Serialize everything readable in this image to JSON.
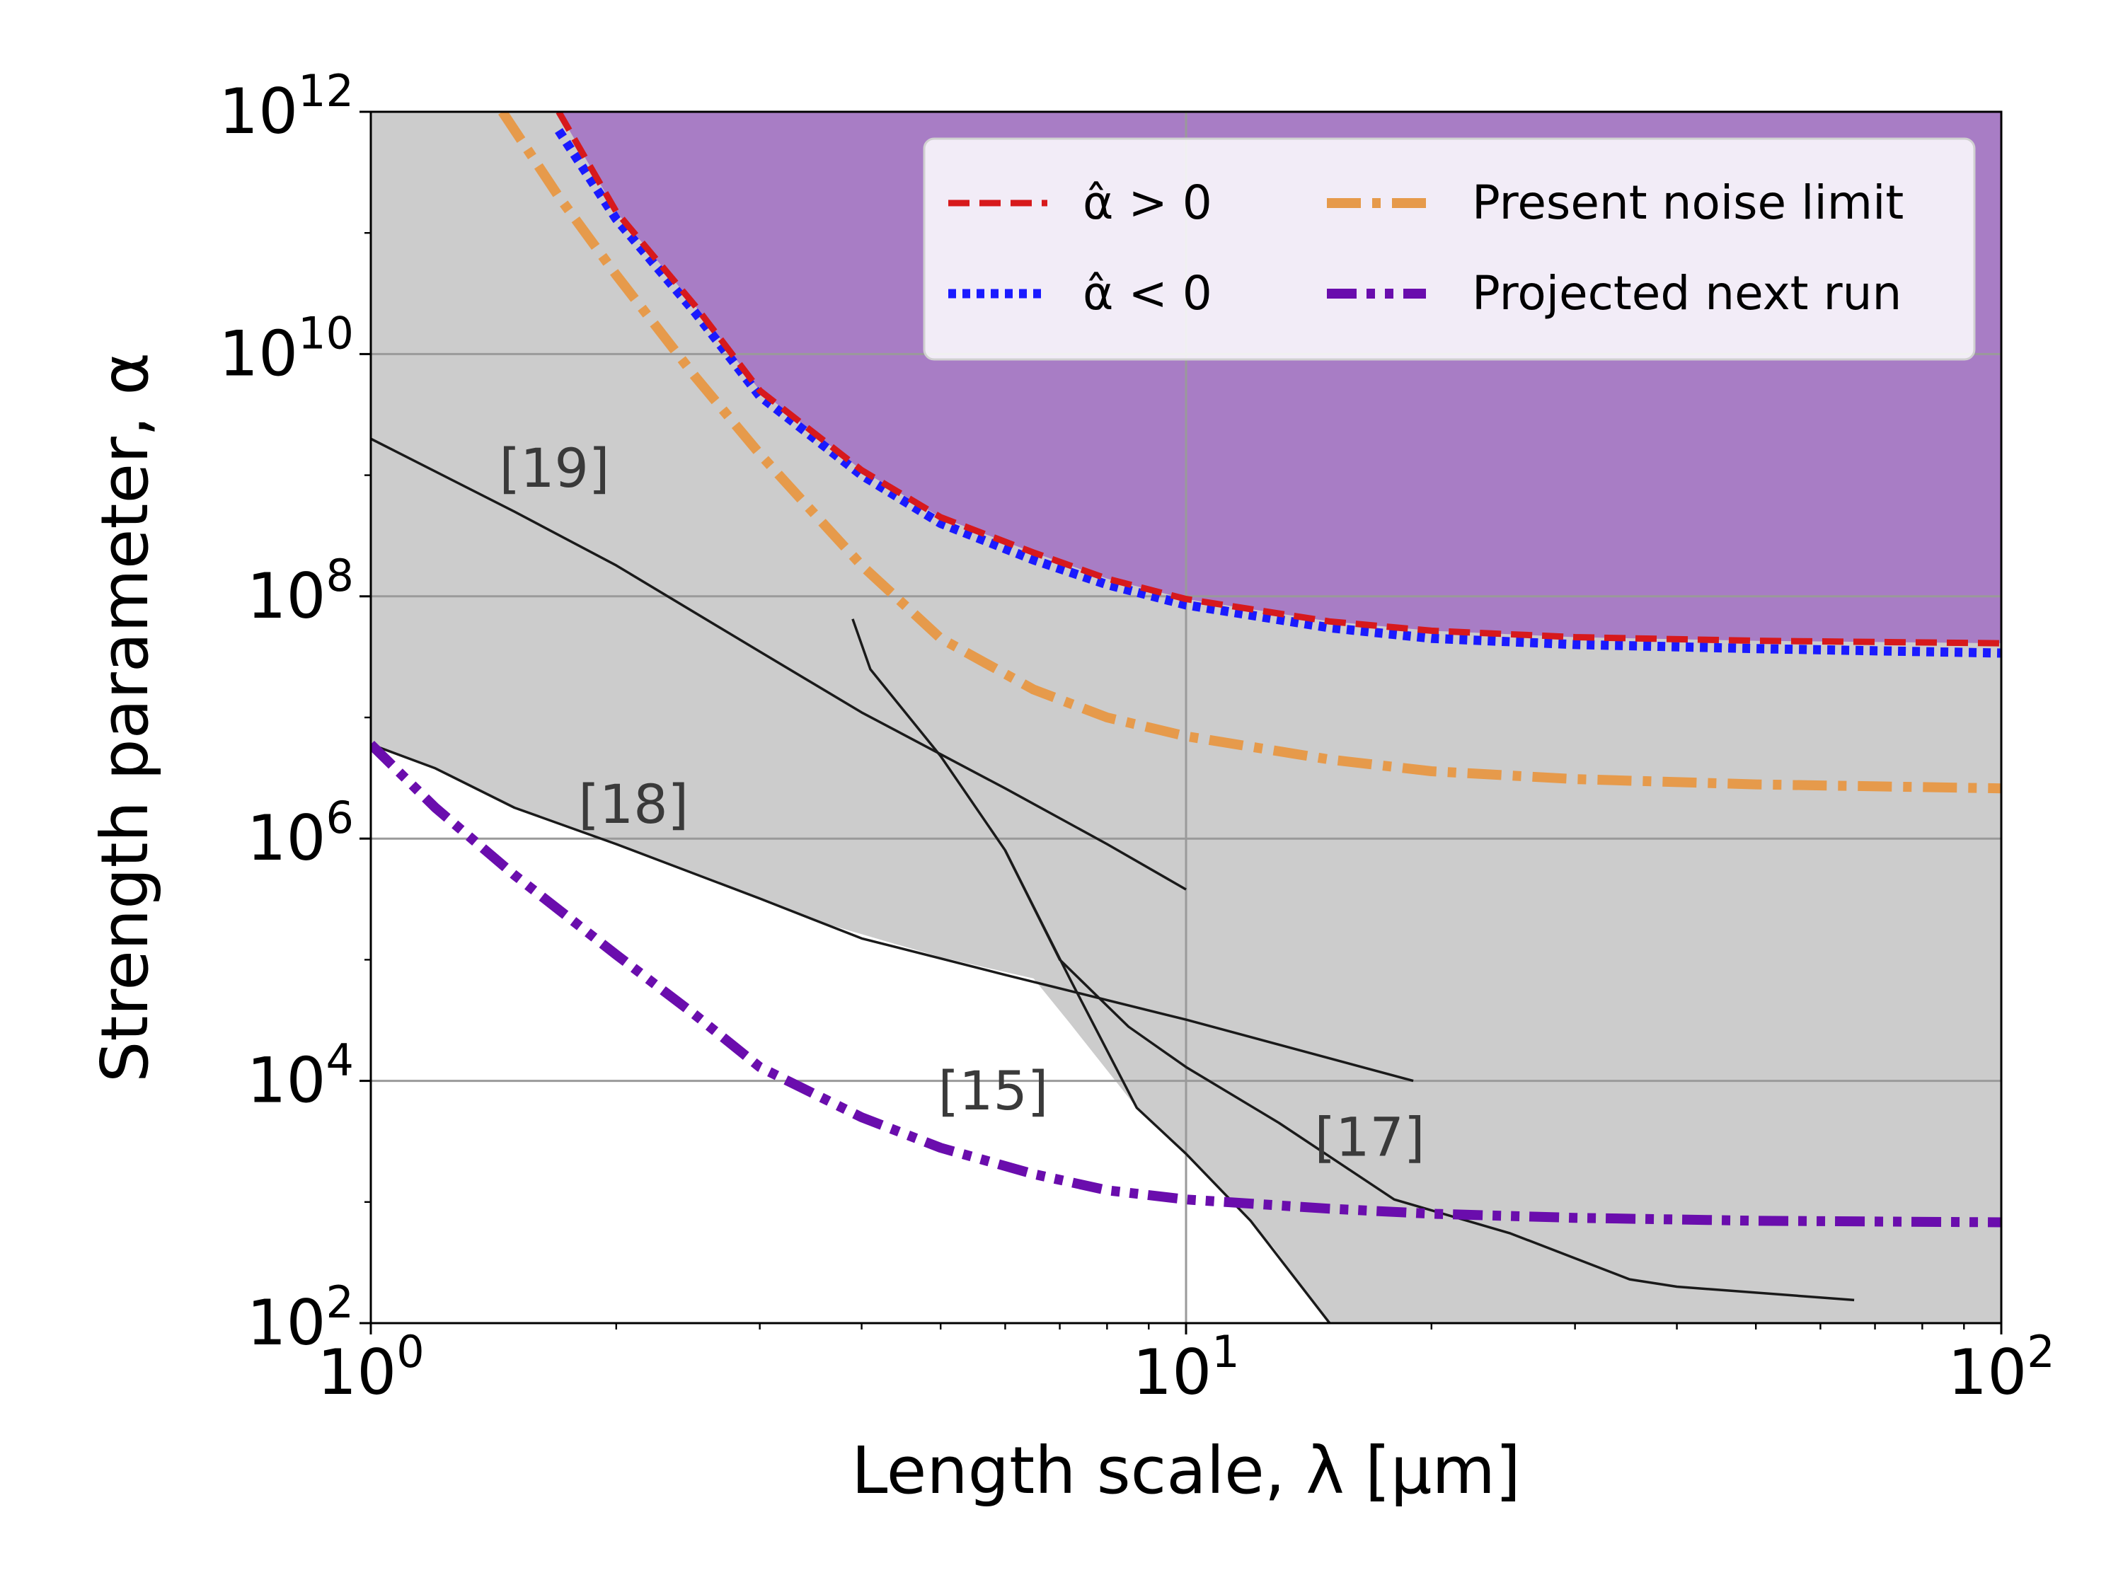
{
  "chart_data": {
    "type": "line",
    "title": "",
    "xlabel": "Length scale, λ [μm]",
    "ylabel": "Strength parameter, α",
    "x_scale": "log",
    "y_scale": "log",
    "xlim": [
      1,
      100
    ],
    "ylim": [
      100,
      1000000000000
    ],
    "grid": "major",
    "legend_placement": "top-right",
    "x_ticks": [
      {
        "value": 1,
        "base": "10",
        "exp": "0"
      },
      {
        "value": 10,
        "base": "10",
        "exp": "1"
      },
      {
        "value": 100,
        "base": "10",
        "exp": "2"
      }
    ],
    "y_ticks": [
      {
        "value": 100,
        "base": "10",
        "exp": "2"
      },
      {
        "value": 10000,
        "base": "10",
        "exp": "4"
      },
      {
        "value": 1000000,
        "base": "10",
        "exp": "6"
      },
      {
        "value": 100000000,
        "base": "10",
        "exp": "8"
      },
      {
        "value": 10000000000,
        "base": "10",
        "exp": "10"
      },
      {
        "value": 1000000000000,
        "base": "10",
        "exp": "12"
      }
    ],
    "excluded_region": {
      "color": "#cccccc",
      "boundary": [
        {
          "x": 1.0,
          "y": 6000000
        },
        {
          "x": 1.2,
          "y": 3800000
        },
        {
          "x": 1.5,
          "y": 1800000
        },
        {
          "x": 2.0,
          "y": 900000
        },
        {
          "x": 3.0,
          "y": 320000
        },
        {
          "x": 3.6,
          "y": 200000
        },
        {
          "x": 5.0,
          "y": 105000
        },
        {
          "x": 6.5,
          "y": 70000
        },
        {
          "x": 7.2,
          "y": 30000
        },
        {
          "x": 8.7,
          "y": 6000
        },
        {
          "x": 10.0,
          "y": 2500
        },
        {
          "x": 11.4,
          "y": 1000
        },
        {
          "x": 12.8,
          "y": 420
        },
        {
          "x": 15.0,
          "y": 100
        }
      ]
    },
    "series": [
      {
        "label": "α̂ > 0",
        "color": "#d7191c",
        "style": "dashed",
        "fill_above": "#a87dc5",
        "points": [
          {
            "x": 1.7,
            "y": 1000000000000
          },
          {
            "x": 2.0,
            "y": 150000000000
          },
          {
            "x": 2.5,
            "y": 25000000000
          },
          {
            "x": 3.0,
            "y": 5000000000
          },
          {
            "x": 4.0,
            "y": 1100000000
          },
          {
            "x": 5.0,
            "y": 450000000
          },
          {
            "x": 6.5,
            "y": 230000000
          },
          {
            "x": 8.0,
            "y": 140000000
          },
          {
            "x": 10.0,
            "y": 95000000
          },
          {
            "x": 15.0,
            "y": 62000000
          },
          {
            "x": 20.0,
            "y": 52000000
          },
          {
            "x": 30.0,
            "y": 46000000
          },
          {
            "x": 50.0,
            "y": 43000000
          },
          {
            "x": 100.0,
            "y": 41000000
          }
        ]
      },
      {
        "label": "α̂ < 0",
        "color": "#1a1aff",
        "style": "dotted",
        "points": [
          {
            "x": 1.7,
            "y": 700000000000
          },
          {
            "x": 2.0,
            "y": 130000000000
          },
          {
            "x": 2.5,
            "y": 22000000000
          },
          {
            "x": 3.0,
            "y": 4500000000
          },
          {
            "x": 4.0,
            "y": 1000000000
          },
          {
            "x": 5.0,
            "y": 400000000
          },
          {
            "x": 6.5,
            "y": 200000000
          },
          {
            "x": 8.0,
            "y": 125000000
          },
          {
            "x": 10.0,
            "y": 85000000
          },
          {
            "x": 15.0,
            "y": 55000000
          },
          {
            "x": 20.0,
            "y": 45000000
          },
          {
            "x": 30.0,
            "y": 40000000
          },
          {
            "x": 50.0,
            "y": 37000000
          },
          {
            "x": 100.0,
            "y": 34000000
          }
        ]
      },
      {
        "label": "Present noise limit",
        "color": "#e69a4b",
        "style": "dash-dot",
        "points": [
          {
            "x": 1.45,
            "y": 1000000000000
          },
          {
            "x": 1.7,
            "y": 200000000000
          },
          {
            "x": 2.0,
            "y": 45000000000
          },
          {
            "x": 2.5,
            "y": 6500000000
          },
          {
            "x": 3.0,
            "y": 1500000000
          },
          {
            "x": 3.5,
            "y": 480000000
          },
          {
            "x": 4.0,
            "y": 180000000
          },
          {
            "x": 5.0,
            "y": 45000000
          },
          {
            "x": 6.5,
            "y": 17000000
          },
          {
            "x": 8.0,
            "y": 10000000
          },
          {
            "x": 10.0,
            "y": 7000000
          },
          {
            "x": 15.0,
            "y": 4500000
          },
          {
            "x": 20.0,
            "y": 3600000
          },
          {
            "x": 30.0,
            "y": 3100000
          },
          {
            "x": 50.0,
            "y": 2800000
          },
          {
            "x": 100.0,
            "y": 2600000
          }
        ]
      },
      {
        "label": "Projected next run",
        "color": "#6a0dad",
        "style": "dash-dot-dot",
        "points": [
          {
            "x": 1.0,
            "y": 6000000
          },
          {
            "x": 1.2,
            "y": 1800000
          },
          {
            "x": 1.5,
            "y": 500000
          },
          {
            "x": 2.0,
            "y": 110000
          },
          {
            "x": 2.5,
            "y": 35000
          },
          {
            "x": 3.0,
            "y": 13000
          },
          {
            "x": 4.0,
            "y": 5000
          },
          {
            "x": 5.0,
            "y": 2800
          },
          {
            "x": 6.5,
            "y": 1700
          },
          {
            "x": 8.0,
            "y": 1250
          },
          {
            "x": 10.0,
            "y": 1050
          },
          {
            "x": 15.0,
            "y": 880
          },
          {
            "x": 20.0,
            "y": 800
          },
          {
            "x": 30.0,
            "y": 740
          },
          {
            "x": 50.0,
            "y": 700
          },
          {
            "x": 100.0,
            "y": 680
          }
        ]
      }
    ],
    "reference_curves": [
      {
        "label": "[19]",
        "label_pos": {
          "x": 1.68,
          "y": 800000000
        },
        "points": [
          {
            "x": 1.0,
            "y": 2000000000
          },
          {
            "x": 1.5,
            "y": 500000000
          },
          {
            "x": 2.0,
            "y": 180000000
          },
          {
            "x": 3.0,
            "y": 35000000
          },
          {
            "x": 4.0,
            "y": 11000000
          },
          {
            "x": 6.0,
            "y": 2600000
          },
          {
            "x": 8.0,
            "y": 900000
          },
          {
            "x": 10.0,
            "y": 380000
          }
        ]
      },
      {
        "label": "[18]",
        "label_pos": {
          "x": 2.1,
          "y": 1350000
        },
        "points": [
          {
            "x": 1.0,
            "y": 6000000
          },
          {
            "x": 1.2,
            "y": 3800000
          },
          {
            "x": 1.5,
            "y": 1800000
          },
          {
            "x": 2.0,
            "y": 900000
          },
          {
            "x": 3.0,
            "y": 320000
          },
          {
            "x": 4.0,
            "y": 150000
          },
          {
            "x": 6.0,
            "y": 75000
          },
          {
            "x": 10.0,
            "y": 32000
          },
          {
            "x": 19.0,
            "y": 10000
          }
        ]
      },
      {
        "label": "[15]",
        "label_pos": {
          "x": 5.8,
          "y": 5800
        },
        "points": [
          {
            "x": 3.9,
            "y": 65000000
          },
          {
            "x": 4.1,
            "y": 25000000
          },
          {
            "x": 5.0,
            "y": 4800000
          },
          {
            "x": 6.0,
            "y": 800000
          },
          {
            "x": 7.2,
            "y": 70000
          },
          {
            "x": 8.7,
            "y": 6000
          },
          {
            "x": 10.0,
            "y": 2500
          },
          {
            "x": 12.0,
            "y": 700
          },
          {
            "x": 15.0,
            "y": 100
          }
        ]
      },
      {
        "label": "[17]",
        "label_pos": {
          "x": 16.8,
          "y": 2400
        },
        "points": [
          {
            "x": 6.0,
            "y": 800000
          },
          {
            "x": 7.0,
            "y": 100000
          },
          {
            "x": 8.5,
            "y": 28000
          },
          {
            "x": 10.0,
            "y": 13000
          },
          {
            "x": 13.0,
            "y": 4500
          },
          {
            "x": 18.0,
            "y": 1050
          },
          {
            "x": 25.0,
            "y": 550
          },
          {
            "x": 35.0,
            "y": 230
          },
          {
            "x": 40.0,
            "y": 200
          },
          {
            "x": 66.0,
            "y": 155
          }
        ]
      }
    ]
  }
}
